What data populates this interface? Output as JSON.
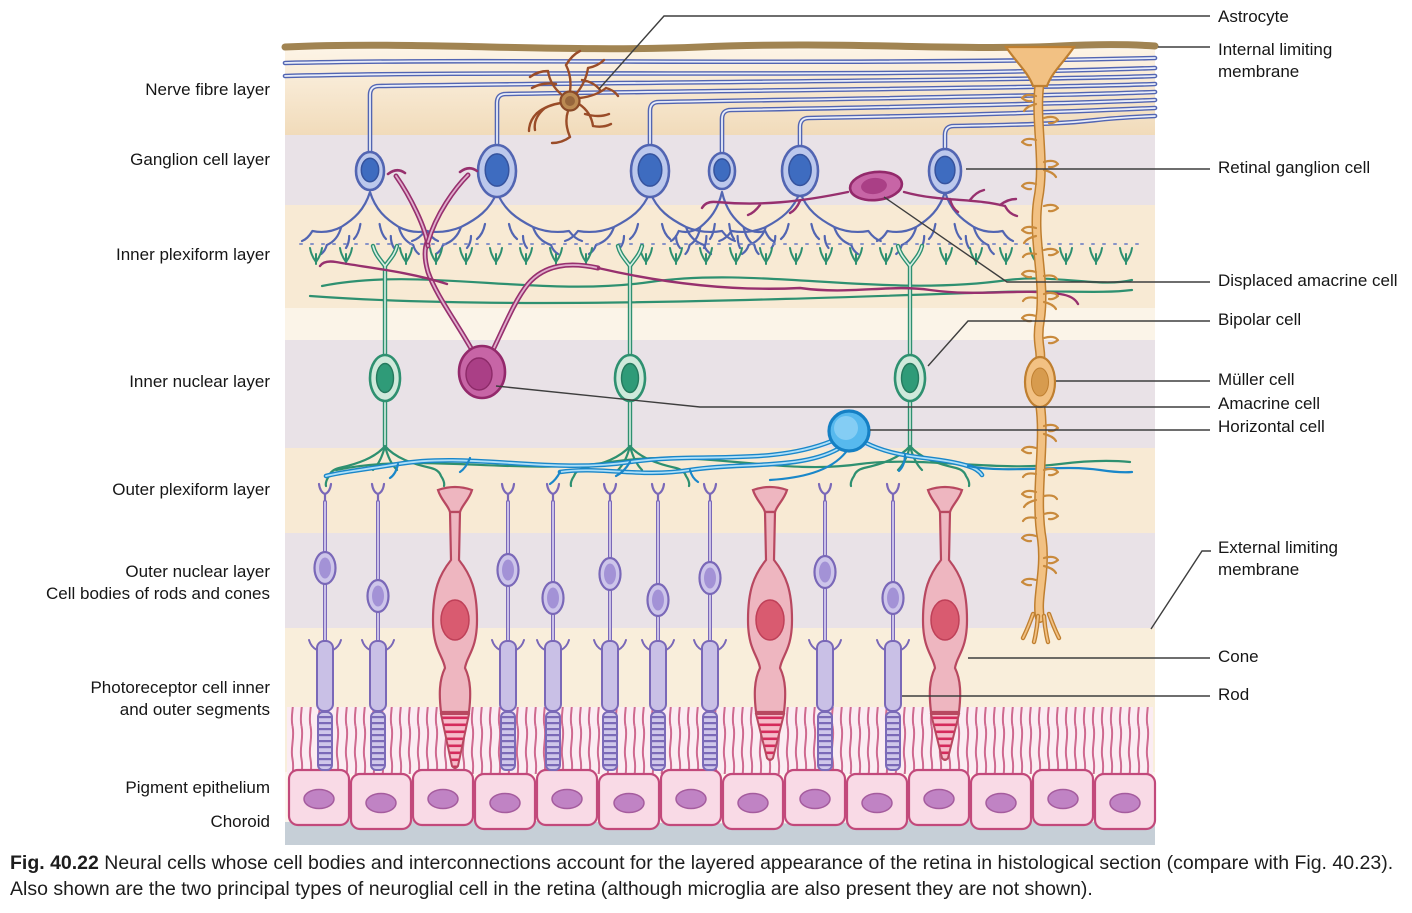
{
  "layer_labels": [
    {
      "lines": [
        "Nerve fibre layer"
      ]
    },
    {
      "lines": [
        "Ganglion cell layer"
      ]
    },
    {
      "lines": [
        "Inner plexiform layer"
      ]
    },
    {
      "lines": [
        "Inner nuclear layer"
      ]
    },
    {
      "lines": [
        "Outer plexiform layer"
      ]
    },
    {
      "lines": [
        "Outer nuclear layer",
        "Cell bodies of rods and cones"
      ]
    },
    {
      "lines": [
        "Photoreceptor cell inner",
        "and outer segments"
      ]
    },
    {
      "lines": [
        "Pigment epithelium"
      ]
    },
    {
      "lines": [
        "Choroid"
      ]
    }
  ],
  "cell_labels": [
    {
      "lines": [
        "Astrocyte"
      ]
    },
    {
      "lines": [
        "Internal limiting",
        "membrane"
      ]
    },
    {
      "lines": [
        "Retinal ganglion cell"
      ]
    },
    {
      "lines": [
        "Displaced amacrine cell"
      ]
    },
    {
      "lines": [
        "Bipolar cell"
      ]
    },
    {
      "lines": [
        "Müller cell"
      ]
    },
    {
      "lines": [
        "Amacrine cell"
      ]
    },
    {
      "lines": [
        "Horizontal cell"
      ]
    },
    {
      "lines": [
        "External limiting",
        "membrane"
      ]
    },
    {
      "lines": [
        "Cone"
      ]
    },
    {
      "lines": [
        "Rod"
      ]
    }
  ],
  "caption": {
    "label": "Fig. 40.22",
    "text": "Neural cells whose cell bodies and interconnections account for the layered appearance of the retina in histological section (compare with Fig. 40.23). Also shown are the two principal types of neuroglial cell in the retina (although microglia are also present they are not shown)."
  },
  "colors": {
    "ganglion_cell_blue": "#4a63b4",
    "bipolar_cell_green": "#2e9070",
    "amacrine_magenta": "#98306f",
    "horizontal_cell_blue": "#1a87c9",
    "muller_cell_orange": "#eeb877",
    "astrocyte_brown": "#9a4c28",
    "rod_purple": "#7a68b8",
    "cone_red": "#c04a63",
    "pigment_epithelium_pink": "#c2497b",
    "internal_limiting_membrane_tan": "#a18452",
    "choroid_grey": "#c6cfd7"
  }
}
